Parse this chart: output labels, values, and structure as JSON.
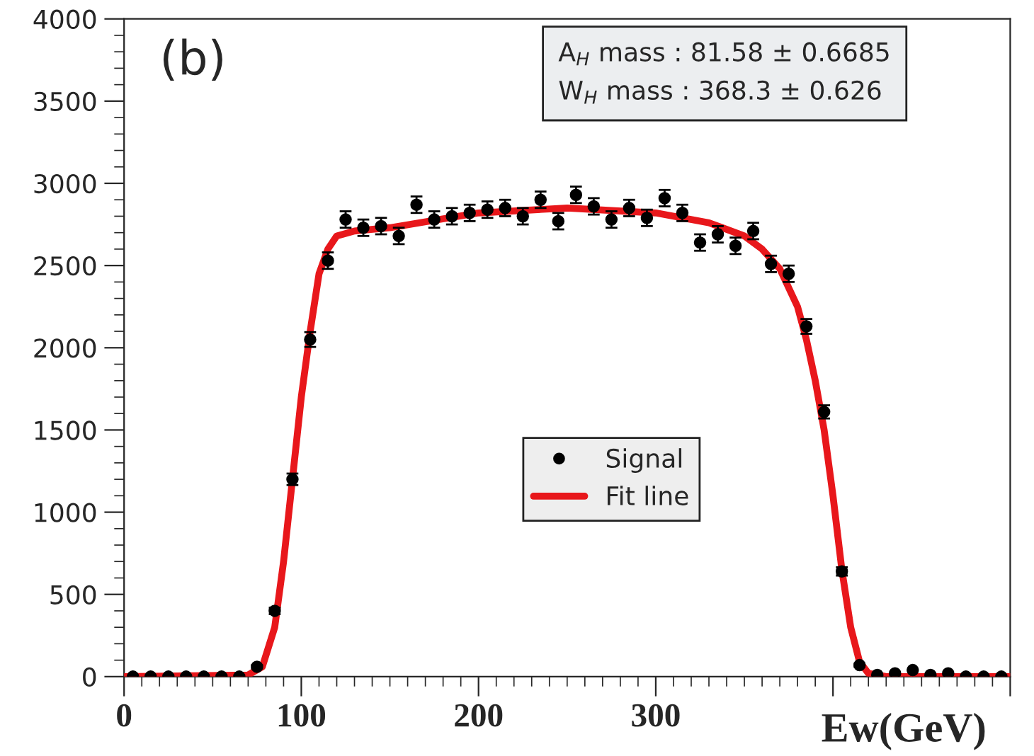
{
  "chart_data": {
    "type": "scatter",
    "xlabel": "Ew(GeV)",
    "xlim": [
      0,
      500
    ],
    "xticks": [
      0,
      100,
      200,
      300,
      {
        "value": 400,
        "label": null
      },
      {
        "value": 500,
        "label": null
      }
    ],
    "ylim": [
      0,
      4000
    ],
    "yticks": [
      0,
      500,
      1000,
      1500,
      2000,
      2500,
      3000,
      3500,
      4000
    ],
    "grid": false,
    "legend": "center",
    "marker": "circle",
    "annotations": [
      "(b)",
      "A$_{H}$ mass : 81.58 ± 0.6685\nW$_{H}$ mass : 368.3 ± 0.626"
    ],
    "series": [
      {
        "name": "Signal",
        "color": "#000000",
        "x": [
          5,
          15,
          25,
          35,
          45,
          55,
          65,
          75,
          85,
          95,
          105,
          115,
          125,
          135,
          145,
          155,
          165,
          175,
          185,
          195,
          205,
          215,
          225,
          235,
          245,
          255,
          265,
          275,
          285,
          295,
          305,
          315,
          325,
          335,
          345,
          355,
          365,
          375,
          385,
          395,
          405,
          415,
          425,
          435,
          445,
          455,
          465,
          475,
          485,
          495
        ],
        "values": [
          0,
          0,
          0,
          0,
          0,
          0,
          0,
          60,
          400,
          1200,
          2050,
          2530,
          2780,
          2730,
          2740,
          2680,
          2870,
          2780,
          2800,
          2820,
          2840,
          2850,
          2800,
          2900,
          2770,
          2930,
          2860,
          2780,
          2850,
          2790,
          2910,
          2820,
          2640,
          2690,
          2620,
          2710,
          2510,
          2450,
          2130,
          1610,
          640,
          70,
          10,
          20,
          40,
          10,
          20,
          0,
          0,
          0
        ],
        "errors": [
          null,
          null,
          null,
          null,
          null,
          null,
          null,
          10,
          20,
          35,
          45,
          50,
          50,
          50,
          50,
          50,
          50,
          50,
          50,
          50,
          50,
          50,
          50,
          50,
          50,
          50,
          50,
          50,
          50,
          50,
          50,
          50,
          50,
          50,
          50,
          50,
          50,
          50,
          45,
          40,
          25,
          10,
          null,
          null,
          null,
          null,
          null,
          null,
          null,
          null
        ]
      },
      {
        "name": "Fit line",
        "type": "line",
        "color": "#e8171b",
        "line_style": "solid",
        "marker": "none",
        "x": [
          0,
          70,
          78,
          85,
          90,
          95,
          100,
          105,
          110,
          115,
          120,
          130,
          150,
          200,
          250,
          300,
          330,
          350,
          360,
          370,
          380,
          385,
          390,
          395,
          400,
          405,
          410,
          415,
          420,
          430,
          500
        ],
        "values": [
          0,
          10,
          60,
          300,
          700,
          1200,
          1700,
          2100,
          2450,
          2600,
          2680,
          2710,
          2730,
          2820,
          2850,
          2820,
          2760,
          2680,
          2600,
          2480,
          2250,
          2050,
          1800,
          1500,
          1100,
          650,
          300,
          90,
          20,
          0,
          0
        ]
      }
    ]
  }
}
